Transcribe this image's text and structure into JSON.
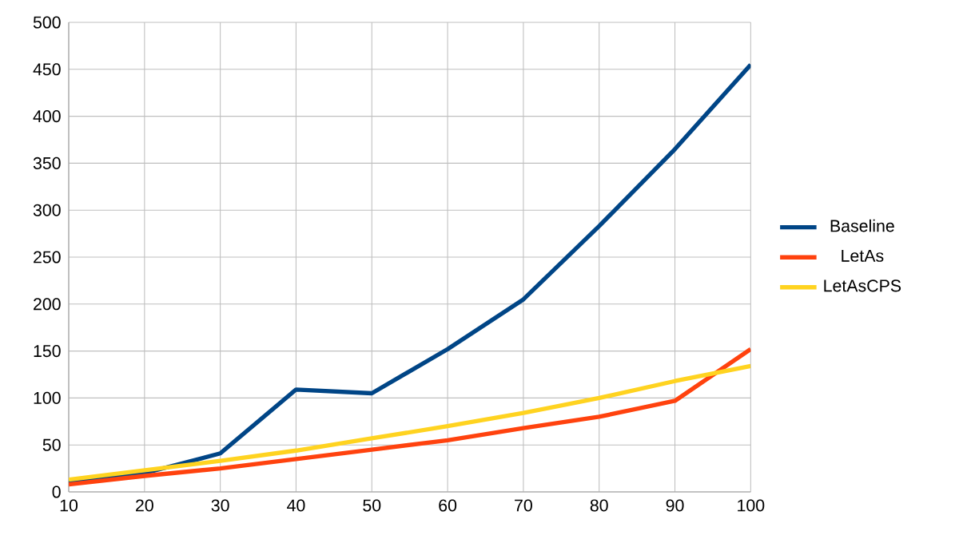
{
  "chart_data": {
    "type": "line",
    "x": [
      10,
      20,
      30,
      40,
      50,
      60,
      70,
      80,
      90,
      100
    ],
    "series": [
      {
        "name": "Baseline",
        "color": "#004586",
        "values": [
          10,
          20,
          41,
          109,
          105,
          152,
          205,
          283,
          365,
          455
        ]
      },
      {
        "name": "LetAs",
        "color": "#ff420e",
        "values": [
          8,
          17,
          25,
          35,
          45,
          55,
          68,
          80,
          97,
          152
        ]
      },
      {
        "name": "LetAsCPS",
        "color": "#ffd320",
        "values": [
          13,
          23,
          33,
          44,
          57,
          70,
          84,
          100,
          118,
          134
        ]
      }
    ],
    "xlim": [
      10,
      100
    ],
    "xticks": [
      10,
      20,
      30,
      40,
      50,
      60,
      70,
      80,
      90,
      100
    ],
    "ylim": [
      0,
      500
    ],
    "yticks": [
      0,
      50,
      100,
      150,
      200,
      250,
      300,
      350,
      400,
      450,
      500
    ],
    "grid": true,
    "legend": "right"
  }
}
